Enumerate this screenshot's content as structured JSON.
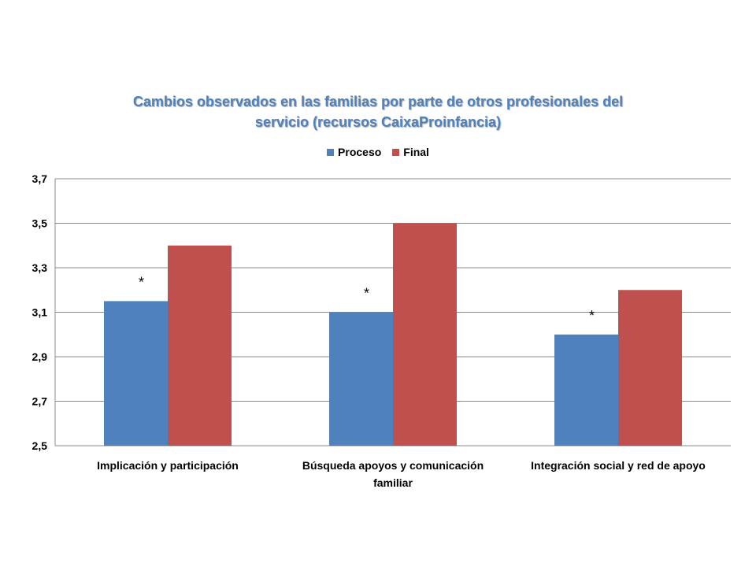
{
  "chart_data": {
    "type": "bar",
    "title_lines": [
      "Cambios observados en las familias por parte de otros profesionales del",
      "servicio (recursos CaixaProinfancia)"
    ],
    "categories": [
      [
        "Implicación y participación"
      ],
      [
        "Búsqueda apoyos y comunicación",
        "familiar"
      ],
      [
        "Integración social y red de apoyo"
      ]
    ],
    "series": [
      {
        "name": "Proceso",
        "color": "#4f81bd",
        "values": [
          3.15,
          3.1,
          3.0
        ]
      },
      {
        "name": "Final",
        "color": "#c0504d",
        "values": [
          3.4,
          3.5,
          3.2
        ]
      }
    ],
    "annotations": [
      "*",
      "*",
      "*"
    ],
    "ylim": [
      2.5,
      3.7
    ],
    "yticks": [
      "2,5",
      "2,7",
      "2,9",
      "3,1",
      "3,3",
      "3,5",
      "3,7"
    ],
    "ytick_values": [
      2.5,
      2.7,
      2.9,
      3.1,
      3.3,
      3.5,
      3.7
    ],
    "grid": true,
    "legend_position": "top"
  }
}
